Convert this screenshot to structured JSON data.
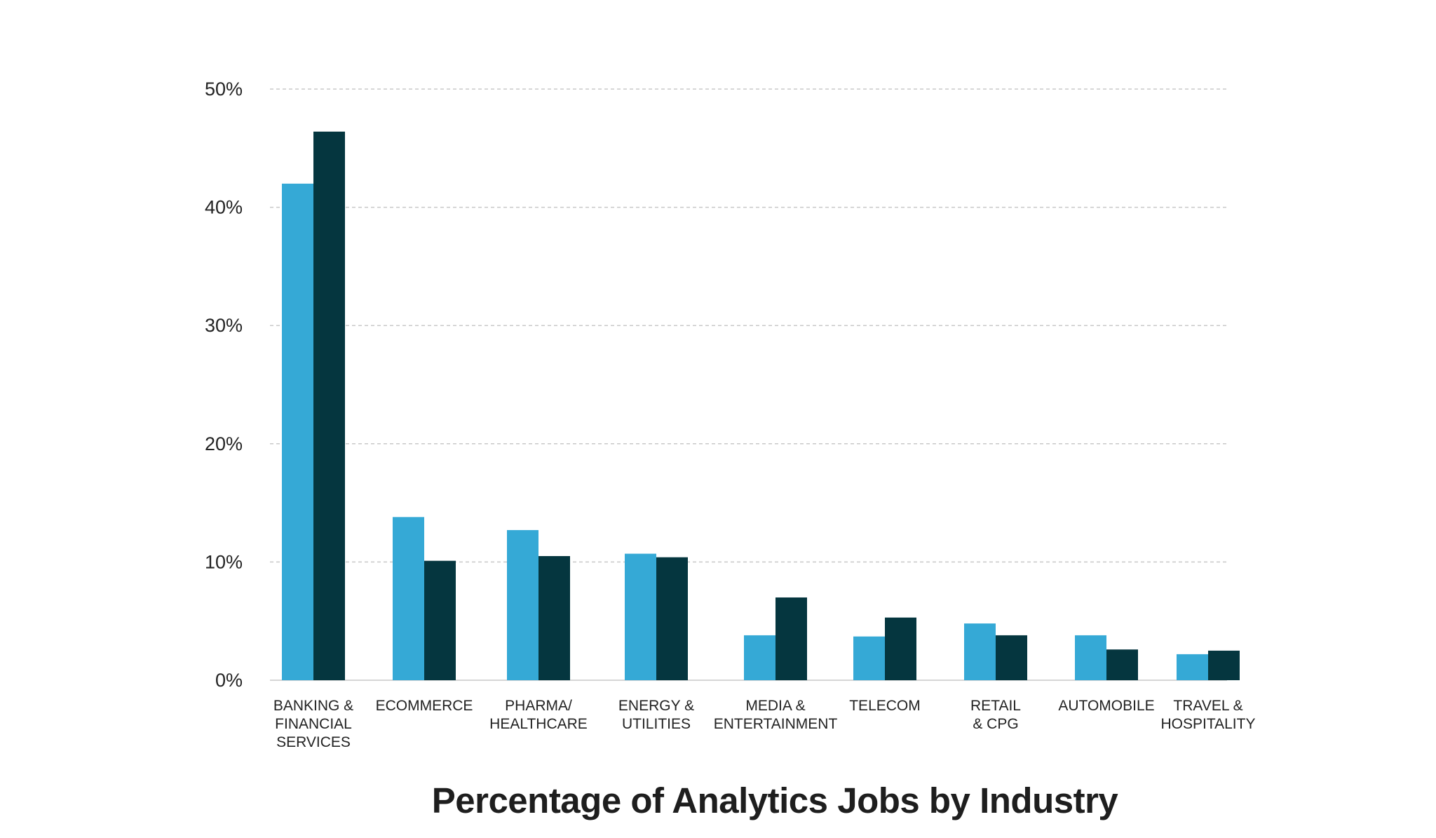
{
  "chart_data": {
    "type": "bar",
    "title": "Percentage of Analytics Jobs by Industry",
    "xlabel": "",
    "ylabel": "",
    "ylim": [
      0,
      50
    ],
    "yticks": [
      "0%",
      "10%",
      "20%",
      "30%",
      "40%",
      "50%"
    ],
    "ytick_values": [
      0,
      10,
      20,
      30,
      40,
      50
    ],
    "grid": true,
    "legend": null,
    "categories": [
      [
        "BANKING &",
        "FINANCIAL",
        "SERVICES"
      ],
      [
        "ECOMMERCE"
      ],
      [
        "PHARMA/",
        "HEALTHCARE"
      ],
      [
        "ENERGY &",
        "UTILITIES"
      ],
      [
        "MEDIA &",
        "ENTERTAINMENT"
      ],
      [
        "TELECOM"
      ],
      [
        "RETAIL",
        "& CPG"
      ],
      [
        "AUTOMOBILE"
      ],
      [
        "TRAVEL &",
        "HOSPITALITY"
      ]
    ],
    "series": [
      {
        "color": "#35a9d6",
        "values": [
          42.0,
          13.8,
          12.7,
          10.7,
          3.8,
          3.7,
          4.8,
          3.8,
          2.2
        ]
      },
      {
        "color": "#05363f",
        "values": [
          46.4,
          10.1,
          10.5,
          10.4,
          7.0,
          5.3,
          3.8,
          2.6,
          2.5
        ]
      }
    ]
  }
}
